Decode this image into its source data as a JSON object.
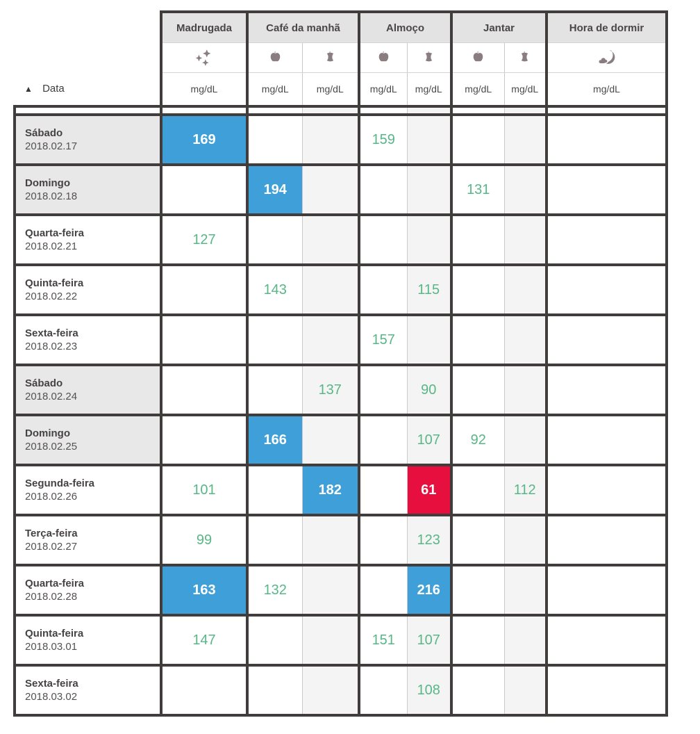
{
  "table": {
    "sort": {
      "label": "Data",
      "direction": "ascending",
      "icon": "sort-ascending-icon"
    },
    "unit": "mg/dL",
    "groups": [
      {
        "label": "Madrugada",
        "span": 1,
        "icons": [
          "sparkles-icon"
        ]
      },
      {
        "label": "Café da manhã",
        "span": 2,
        "icons": [
          "apple-icon",
          "apple-core-icon"
        ]
      },
      {
        "label": "Almoço",
        "span": 2,
        "icons": [
          "apple-icon",
          "apple-core-icon"
        ]
      },
      {
        "label": "Jantar",
        "span": 2,
        "icons": [
          "apple-icon",
          "apple-core-icon"
        ]
      },
      {
        "label": "Hora de dormir",
        "span": 1,
        "icons": [
          "moon-cloud-icon"
        ]
      }
    ],
    "columns": [
      {
        "key": "madrugada",
        "shaded": false,
        "thin": null
      },
      {
        "key": "cafe_before",
        "shaded": false,
        "thin": "right"
      },
      {
        "key": "cafe_after",
        "shaded": true,
        "thin": "left"
      },
      {
        "key": "almoco_before",
        "shaded": false,
        "thin": "right"
      },
      {
        "key": "almoco_after",
        "shaded": true,
        "thin": "left"
      },
      {
        "key": "jantar_before",
        "shaded": false,
        "thin": "right"
      },
      {
        "key": "jantar_after",
        "shaded": true,
        "thin": "left"
      },
      {
        "key": "hora_de_dormir",
        "shaded": false,
        "thin": null
      }
    ],
    "rows": [
      {
        "day": "Sábado",
        "date": "2018.02.17",
        "weekend": true,
        "values": {
          "madrugada": {
            "v": "169",
            "hl": "high"
          },
          "almoco_before": {
            "v": "159"
          }
        }
      },
      {
        "day": "Domingo",
        "date": "2018.02.18",
        "weekend": true,
        "values": {
          "cafe_before": {
            "v": "194",
            "hl": "high"
          },
          "jantar_before": {
            "v": "131"
          }
        }
      },
      {
        "day": "Quarta-feira",
        "date": "2018.02.21",
        "weekend": false,
        "values": {
          "madrugada": {
            "v": "127"
          }
        }
      },
      {
        "day": "Quinta-feira",
        "date": "2018.02.22",
        "weekend": false,
        "values": {
          "cafe_before": {
            "v": "143"
          },
          "almoco_after": {
            "v": "115"
          }
        }
      },
      {
        "day": "Sexta-feira",
        "date": "2018.02.23",
        "weekend": false,
        "values": {
          "almoco_before": {
            "v": "157"
          }
        }
      },
      {
        "day": "Sábado",
        "date": "2018.02.24",
        "weekend": true,
        "values": {
          "cafe_after": {
            "v": "137"
          },
          "almoco_after": {
            "v": "90"
          }
        }
      },
      {
        "day": "Domingo",
        "date": "2018.02.25",
        "weekend": true,
        "values": {
          "cafe_before": {
            "v": "166",
            "hl": "high"
          },
          "almoco_after": {
            "v": "107"
          },
          "jantar_before": {
            "v": "92"
          }
        }
      },
      {
        "day": "Segunda-feira",
        "date": "2018.02.26",
        "weekend": false,
        "values": {
          "madrugada": {
            "v": "101"
          },
          "cafe_after": {
            "v": "182",
            "hl": "high"
          },
          "almoco_after": {
            "v": "61",
            "hl": "low"
          },
          "jantar_after": {
            "v": "112"
          }
        }
      },
      {
        "day": "Terça-feira",
        "date": "2018.02.27",
        "weekend": false,
        "values": {
          "madrugada": {
            "v": "99"
          },
          "almoco_after": {
            "v": "123"
          }
        }
      },
      {
        "day": "Quarta-feira",
        "date": "2018.02.28",
        "weekend": false,
        "values": {
          "madrugada": {
            "v": "163",
            "hl": "high"
          },
          "cafe_before": {
            "v": "132"
          },
          "almoco_after": {
            "v": "216",
            "hl": "high"
          }
        }
      },
      {
        "day": "Quinta-feira",
        "date": "2018.03.01",
        "weekend": false,
        "values": {
          "madrugada": {
            "v": "147"
          },
          "almoco_before": {
            "v": "151"
          },
          "almoco_after": {
            "v": "107"
          }
        }
      },
      {
        "day": "Sexta-feira",
        "date": "2018.03.02",
        "weekend": false,
        "values": {
          "almoco_after": {
            "v": "108"
          }
        }
      }
    ]
  },
  "colors": {
    "highlight_high": "#3fa0d9",
    "highlight_low": "#e60f3d",
    "value_text": "#57b787",
    "border_dark": "#413d3d",
    "group_header_bg": "#e3e3e3",
    "shaded_column_bg": "#f4f4f4",
    "weekend_row_bg": "#e8e8e8",
    "icon_color": "#8a7d80"
  }
}
